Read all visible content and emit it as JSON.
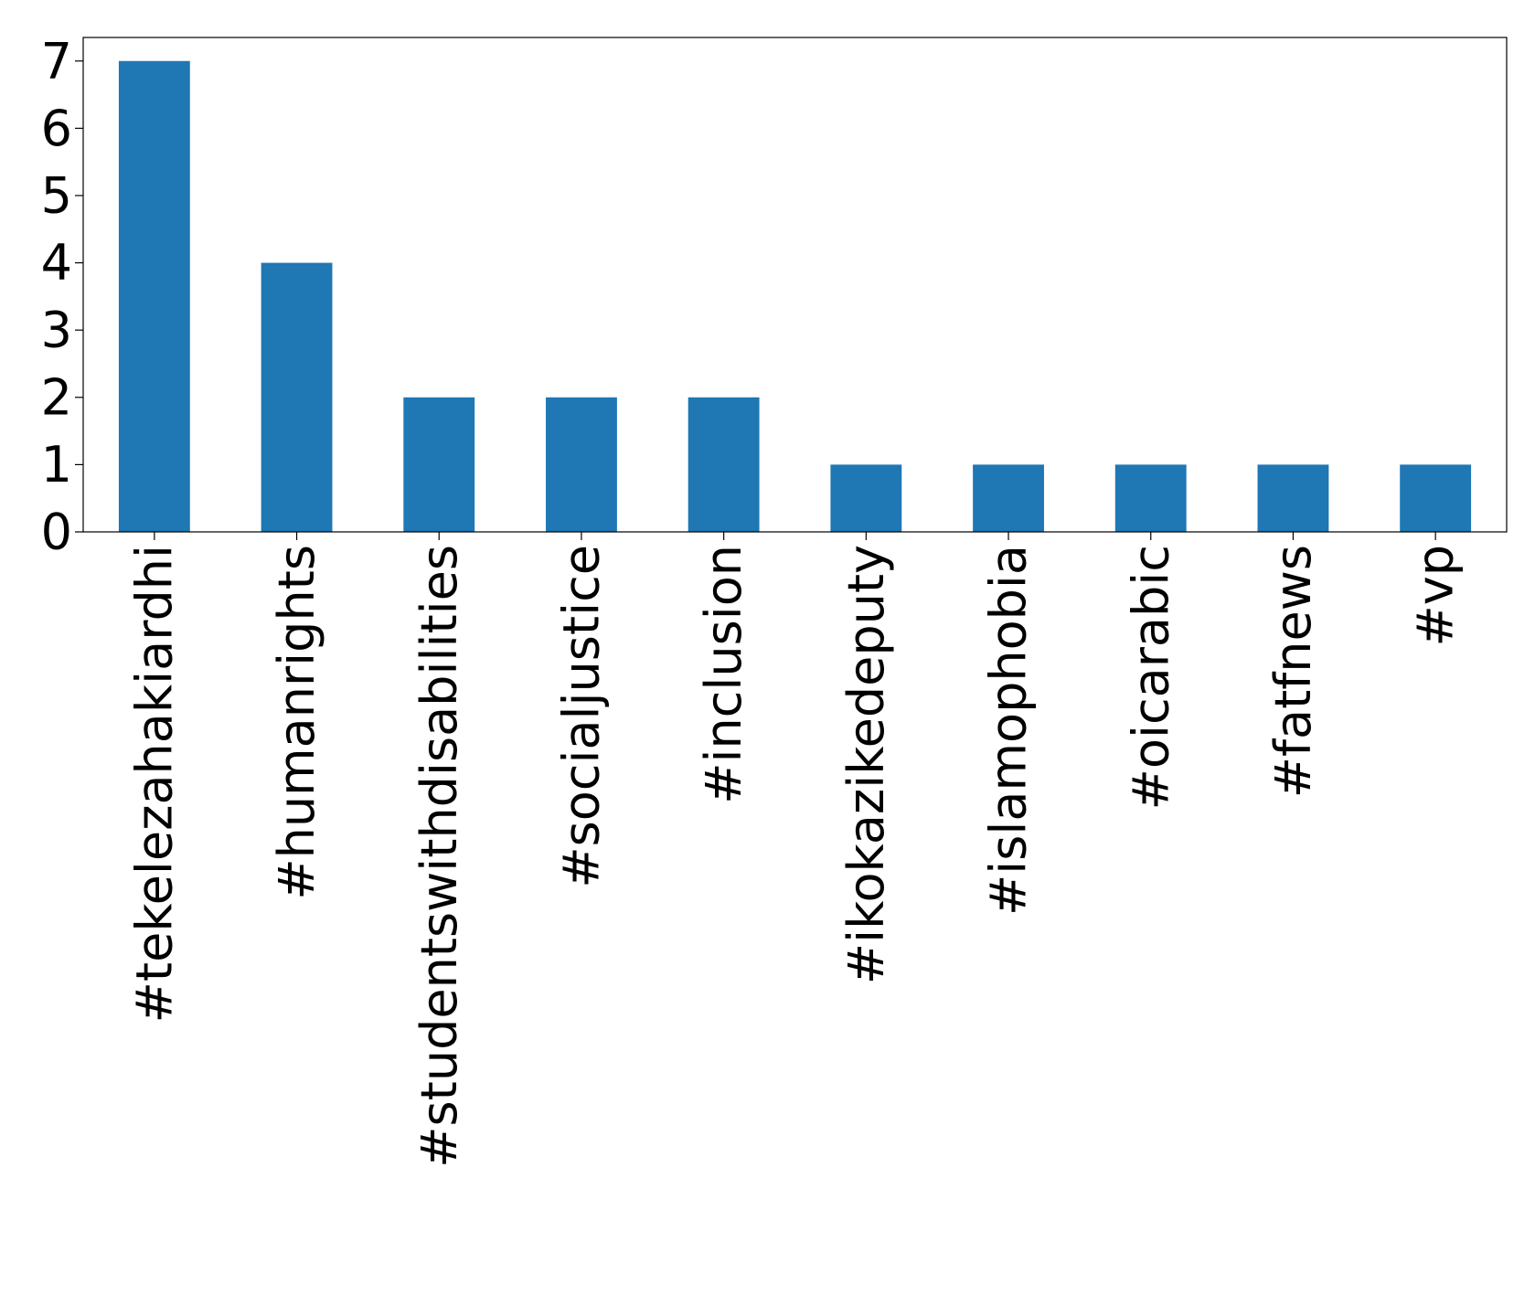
{
  "chart_data": {
    "type": "bar",
    "categories": [
      "#tekelezahakiardhi",
      "#humanrights",
      "#studentswithdisabilities",
      "#socialjustice",
      "#inclusion",
      "#ikokazikedeputy",
      "#islamophobia",
      "#oicarabic",
      "#fatfnews",
      "#vp"
    ],
    "values": [
      7,
      4,
      2,
      2,
      2,
      1,
      1,
      1,
      1,
      1
    ],
    "color": "#1f77b4",
    "ylim": [
      0,
      7.35
    ],
    "yticks": [
      0,
      1,
      2,
      3,
      4,
      5,
      6,
      7
    ],
    "grid": false
  }
}
